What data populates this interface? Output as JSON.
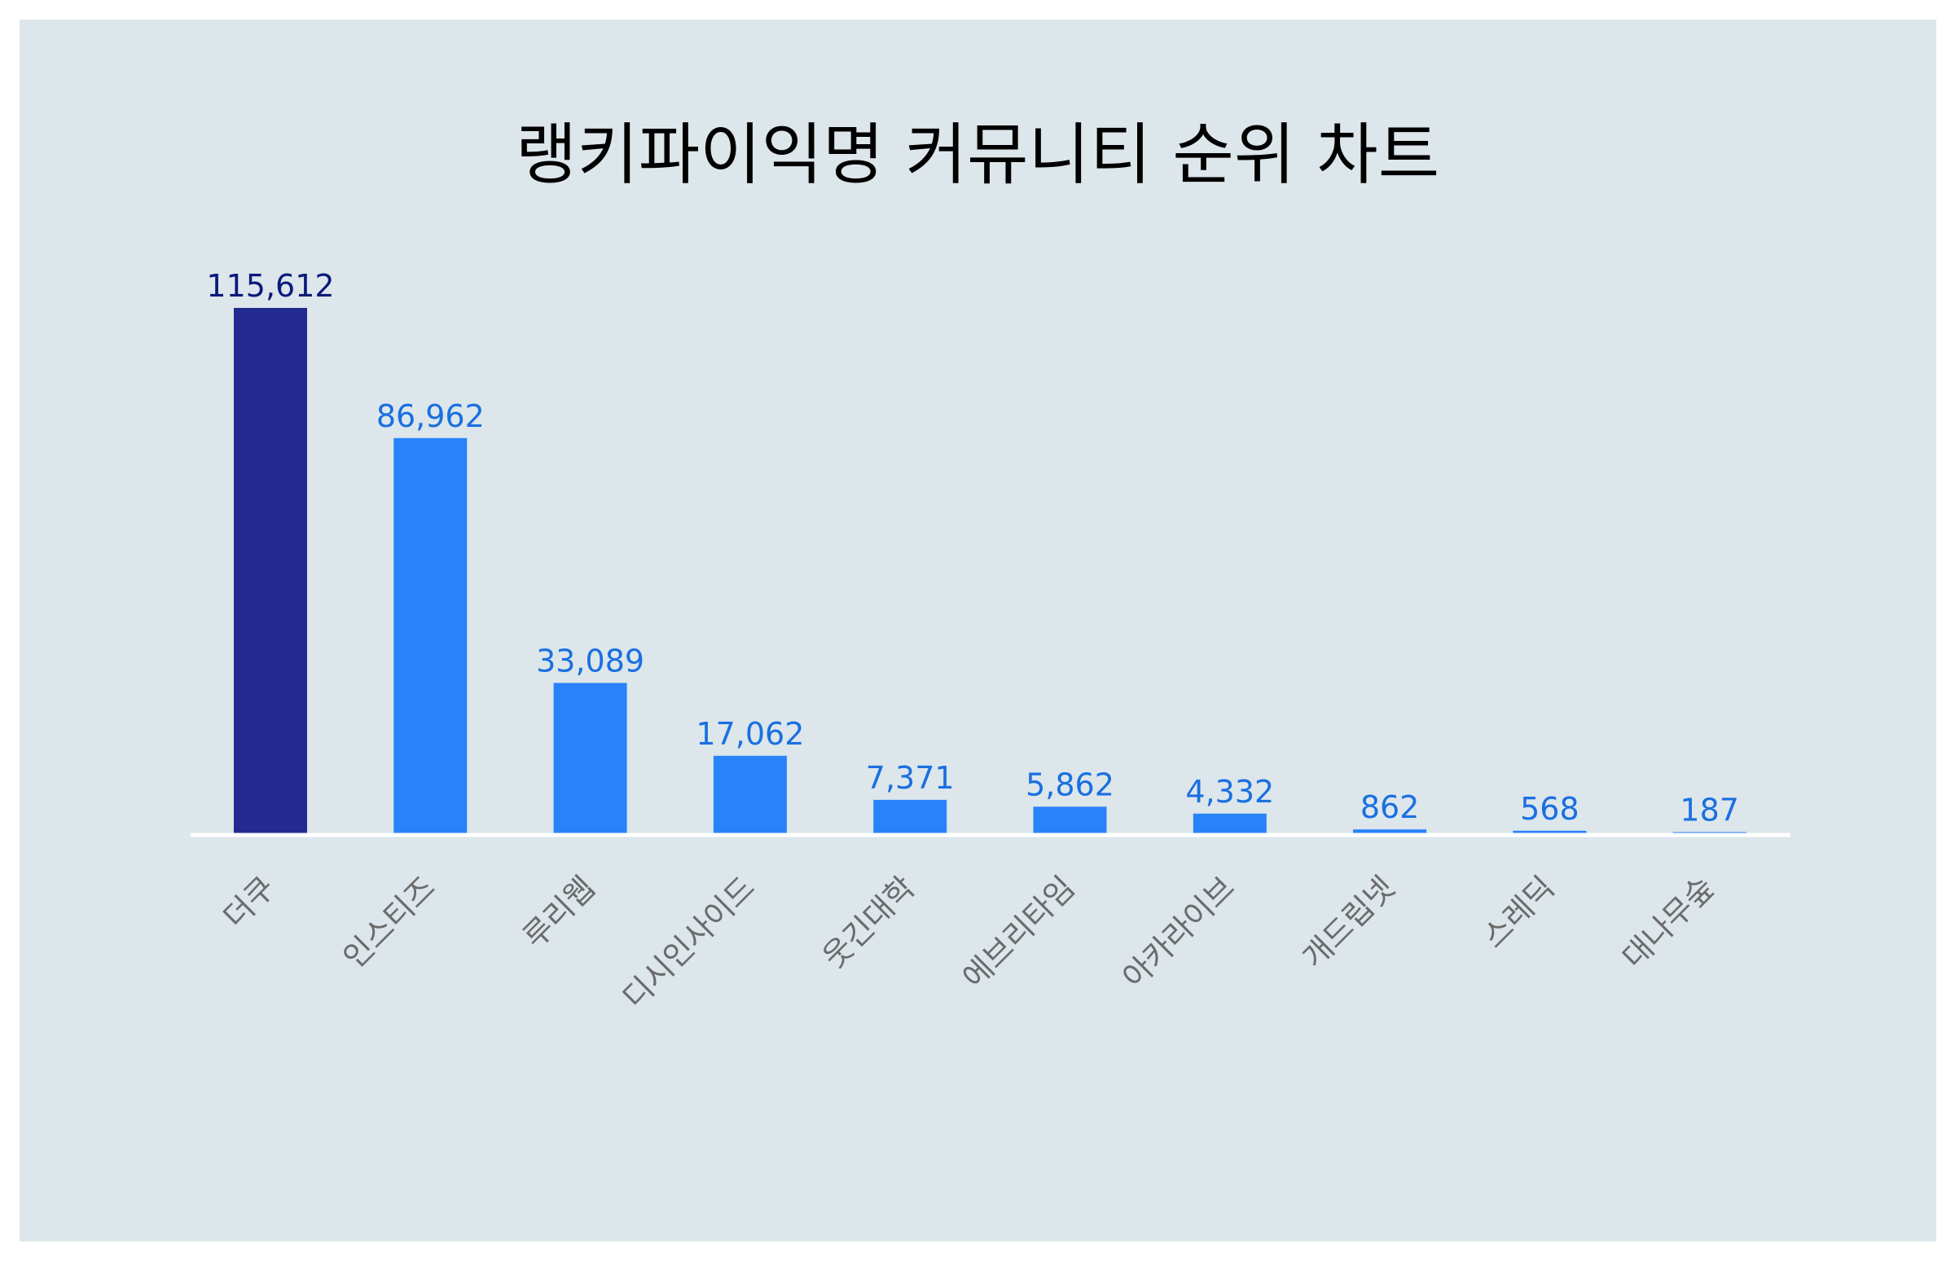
{
  "chart_data": {
    "type": "bar",
    "title": "랭키파이익명 커뮤니티 순위 차트",
    "categories": [
      "더쿠",
      "인스티즈",
      "루리웹",
      "디시인사이드",
      "웃긴대학",
      "에브리타임",
      "아카라이브",
      "개드립넷",
      "스레딕",
      "대나무숲"
    ],
    "values": [
      115612,
      86962,
      33089,
      17062,
      7371,
      5862,
      4332,
      862,
      568,
      187
    ],
    "value_labels": [
      "115,612",
      "86,962",
      "33,089",
      "17,062",
      "7,371",
      "5,862",
      "4,332",
      "862",
      "568",
      "187"
    ],
    "ylim": [
      0,
      115612
    ],
    "grid": false,
    "legend": "none",
    "colors": {
      "highlight_bar": "#232a8f",
      "bar": "#2882fa",
      "highlight_label": "#0a1a7a",
      "label": "#1a6fe0",
      "baseline": "#ffffff",
      "background": "#dce6eb"
    }
  }
}
